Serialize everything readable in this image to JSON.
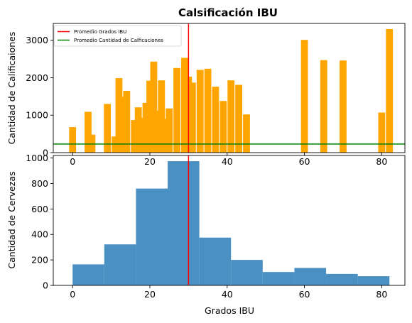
{
  "chart_data": [
    {
      "type": "bar",
      "title": "Calsificación IBU",
      "xlabel": "",
      "ylabel": "Cantidad de Calificaiones",
      "xlim": [
        -5,
        86
      ],
      "ylim": [
        0,
        3450
      ],
      "xticks": [
        0,
        20,
        40,
        60,
        80
      ],
      "yticks": [
        0,
        1000,
        2000,
        3000
      ],
      "bar_color": "#ffa500",
      "bar_width": 1.8,
      "bars": [
        {
          "x": 0,
          "y": 680
        },
        {
          "x": 4,
          "y": 1090
        },
        {
          "x": 5,
          "y": 480
        },
        {
          "x": 9,
          "y": 1300
        },
        {
          "x": 11,
          "y": 430
        },
        {
          "x": 12,
          "y": 1990
        },
        {
          "x": 13,
          "y": 1490
        },
        {
          "x": 14,
          "y": 1650
        },
        {
          "x": 16,
          "y": 870
        },
        {
          "x": 17,
          "y": 1210
        },
        {
          "x": 18,
          "y": 930
        },
        {
          "x": 19,
          "y": 1330
        },
        {
          "x": 20,
          "y": 1920
        },
        {
          "x": 21,
          "y": 2430
        },
        {
          "x": 22,
          "y": 1120
        },
        {
          "x": 23,
          "y": 1930
        },
        {
          "x": 24,
          "y": 900
        },
        {
          "x": 25,
          "y": 1180
        },
        {
          "x": 27,
          "y": 2260
        },
        {
          "x": 29,
          "y": 2530
        },
        {
          "x": 30,
          "y": 2030
        },
        {
          "x": 31,
          "y": 1870
        },
        {
          "x": 33,
          "y": 2210
        },
        {
          "x": 35,
          "y": 2240
        },
        {
          "x": 37,
          "y": 1760
        },
        {
          "x": 39,
          "y": 1380
        },
        {
          "x": 41,
          "y": 1930
        },
        {
          "x": 43,
          "y": 1810
        },
        {
          "x": 45,
          "y": 1020
        },
        {
          "x": 60,
          "y": 3010
        },
        {
          "x": 65,
          "y": 2470
        },
        {
          "x": 70,
          "y": 2460
        },
        {
          "x": 80,
          "y": 1070
        },
        {
          "x": 82,
          "y": 3300
        }
      ],
      "vline": {
        "name": "Promedio Grados IBU",
        "x": 30,
        "color": "#ff0000"
      },
      "hline": {
        "name": "Promedio Cantidad de Calficaciones",
        "y": 230,
        "color": "#008000"
      },
      "legend": {
        "placement": "top-left"
      },
      "grid": false
    },
    {
      "type": "histogram",
      "title": "",
      "xlabel": "Grados IBU",
      "ylabel": "Cantidad de Cervezas",
      "xlim": [
        -5,
        86
      ],
      "ylim": [
        0,
        1020
      ],
      "xticks": [
        0,
        20,
        40,
        60,
        80
      ],
      "yticks": [
        0,
        200,
        400,
        600,
        800,
        1000
      ],
      "bar_color": "#4a90c2",
      "bins": [
        {
          "from": 0,
          "to": 8.2,
          "count": 165
        },
        {
          "from": 8.2,
          "to": 16.4,
          "count": 322
        },
        {
          "from": 16.4,
          "to": 24.6,
          "count": 760
        },
        {
          "from": 24.6,
          "to": 32.8,
          "count": 975
        },
        {
          "from": 32.8,
          "to": 41,
          "count": 375
        },
        {
          "from": 41,
          "to": 49.2,
          "count": 200
        },
        {
          "from": 49.2,
          "to": 57.4,
          "count": 105
        },
        {
          "from": 57.4,
          "to": 65.6,
          "count": 137
        },
        {
          "from": 65.6,
          "to": 73.8,
          "count": 90
        },
        {
          "from": 73.8,
          "to": 82,
          "count": 72
        }
      ],
      "vline": {
        "x": 30,
        "color": "#ff0000"
      },
      "grid": false
    }
  ]
}
